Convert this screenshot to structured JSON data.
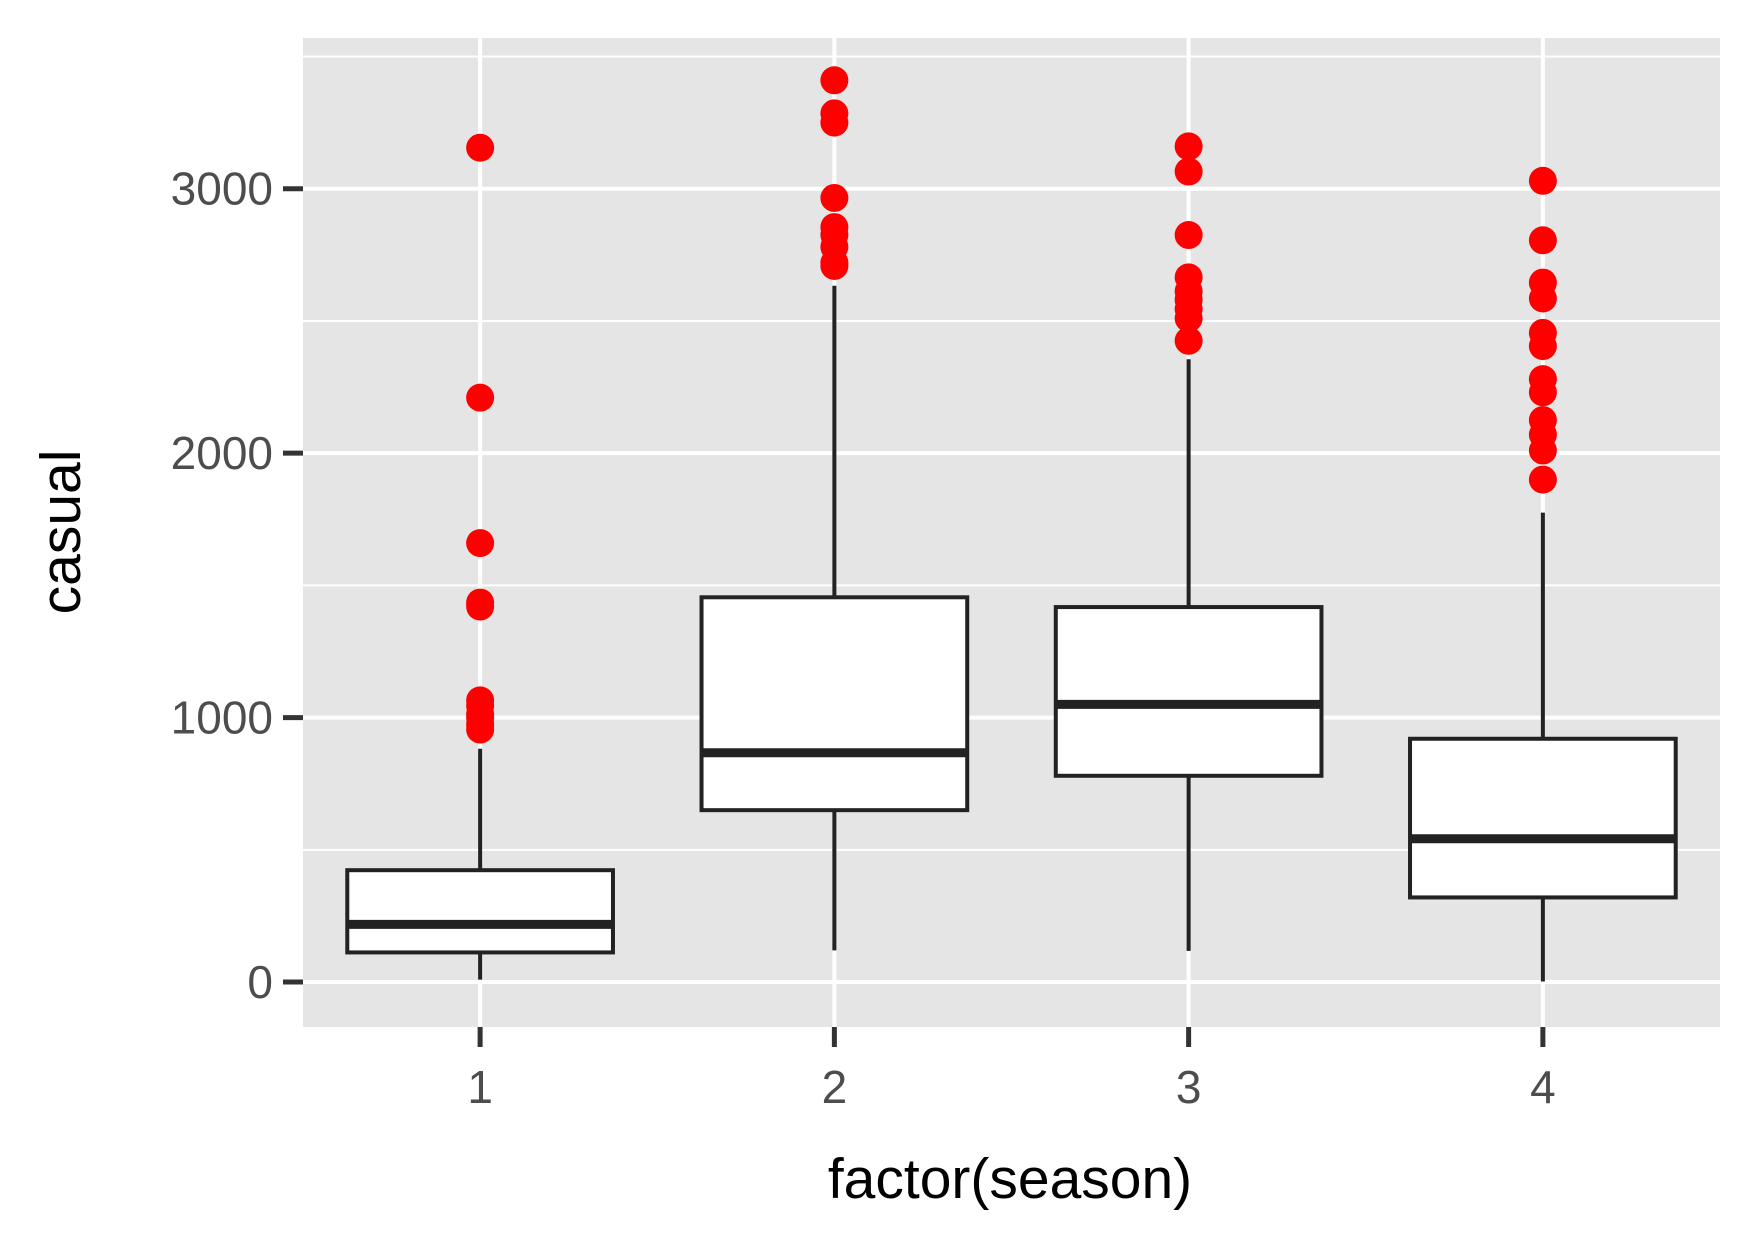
{
  "chart_data": {
    "type": "boxplot",
    "xlabel": "factor(season)",
    "ylabel": "casual",
    "categories": [
      "1",
      "2",
      "3",
      "4"
    ],
    "ylim": [
      -170,
      3570
    ],
    "yticks": [
      0,
      1000,
      2000,
      3000
    ],
    "ytick_labels": [
      "0",
      "1000",
      "2000",
      "3000"
    ],
    "minor_yticks": [
      500,
      1500,
      2500,
      3500
    ],
    "grid": true,
    "background": "#e5e5e5",
    "grid_color": "#ffffff",
    "box_color": "#222222",
    "outlier_color": "#ff0000",
    "boxes": [
      {
        "category": "1",
        "whisker_low": 9,
        "q1": 112,
        "median": 218,
        "q3": 423,
        "whisker_high": 882,
        "outliers": [
          955,
          975,
          1000,
          1013,
          1045,
          1065,
          1420,
          1435,
          1660,
          2210,
          3155
        ]
      },
      {
        "category": "2",
        "whisker_low": 120,
        "q1": 650,
        "median": 867,
        "q3": 1455,
        "whisker_high": 2633,
        "outliers": [
          2708,
          2720,
          2780,
          2825,
          2855,
          2965,
          3250,
          3285,
          3410
        ]
      },
      {
        "category": "3",
        "whisker_low": 118,
        "q1": 780,
        "median": 1050,
        "q3": 1418,
        "whisker_high": 2355,
        "outliers": [
          2425,
          2510,
          2545,
          2580,
          2612,
          2665,
          2825,
          3065,
          3160
        ]
      },
      {
        "category": "4",
        "whisker_low": 2,
        "q1": 320,
        "median": 542,
        "q3": 920,
        "whisker_high": 1775,
        "outliers": [
          1900,
          2010,
          2070,
          2125,
          2230,
          2280,
          2405,
          2455,
          2585,
          2645,
          2805,
          3030
        ]
      }
    ]
  }
}
